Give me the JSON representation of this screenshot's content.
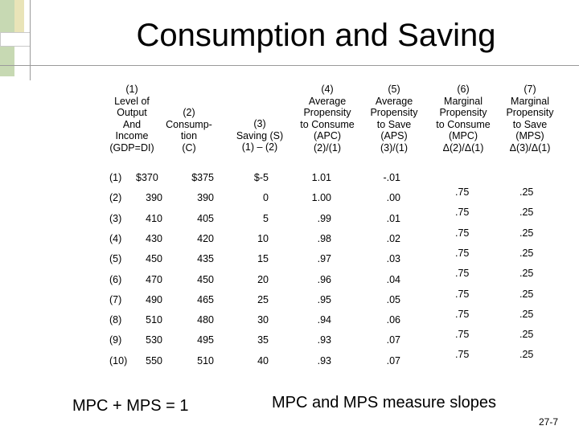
{
  "title": "Consumption and Saving",
  "headers": [
    {
      "lines": [
        "(1)",
        "Level of",
        "Output",
        "And",
        "Income",
        "(GDP=DI)"
      ]
    },
    {
      "lines": [
        "(2)",
        "Consump-",
        "tion",
        "(C)"
      ]
    },
    {
      "lines": [
        "(3)",
        "Saving (S)",
        "(1) – (2)"
      ]
    },
    {
      "lines": [
        "(4)",
        "Average",
        "Propensity",
        "to Consume",
        "(APC)",
        "(2)/(1)"
      ]
    },
    {
      "lines": [
        "(5)",
        "Average",
        "Propensity",
        "to Save",
        "(APS)",
        "(3)/(1)"
      ]
    },
    {
      "lines": [
        "(6)",
        "Marginal",
        "Propensity",
        "to Consume",
        "(MPC)",
        "Δ(2)/Δ(1)"
      ]
    },
    {
      "lines": [
        "(7)",
        "Marginal",
        "Propensity",
        "to Save",
        "(MPS)",
        "Δ(3)/Δ(1)"
      ]
    }
  ],
  "rows": [
    {
      "idx": "(1)",
      "gdp": "$370",
      "c": "$375",
      "s": "$-5",
      "apc": "1.01",
      "aps": "-.01"
    },
    {
      "idx": "(2)",
      "gdp": "390",
      "c": "390",
      "s": "0",
      "apc": "1.00",
      "aps": ".00"
    },
    {
      "idx": "(3)",
      "gdp": "410",
      "c": "405",
      "s": "5",
      "apc": ".99",
      "aps": ".01"
    },
    {
      "idx": "(4)",
      "gdp": "430",
      "c": "420",
      "s": "10",
      "apc": ".98",
      "aps": ".02"
    },
    {
      "idx": "(5)",
      "gdp": "450",
      "c": "435",
      "s": "15",
      "apc": ".97",
      "aps": ".03"
    },
    {
      "idx": "(6)",
      "gdp": "470",
      "c": "450",
      "s": "20",
      "apc": ".96",
      "aps": ".04"
    },
    {
      "idx": "(7)",
      "gdp": "490",
      "c": "465",
      "s": "25",
      "apc": ".95",
      "aps": ".05"
    },
    {
      "idx": "(8)",
      "gdp": "510",
      "c": "480",
      "s": "30",
      "apc": ".94",
      "aps": ".06"
    },
    {
      "idx": "(9)",
      "gdp": "530",
      "c": "495",
      "s": "35",
      "apc": ".93",
      "aps": ".07"
    },
    {
      "idx": "(10)",
      "gdp": "550",
      "c": "510",
      "s": "40",
      "apc": ".93",
      "aps": ".07"
    }
  ],
  "marginals": [
    {
      "mpc": ".75",
      "mps": ".25"
    },
    {
      "mpc": ".75",
      "mps": ".25"
    },
    {
      "mpc": ".75",
      "mps": ".25"
    },
    {
      "mpc": ".75",
      "mps": ".25"
    },
    {
      "mpc": ".75",
      "mps": ".25"
    },
    {
      "mpc": ".75",
      "mps": ".25"
    },
    {
      "mpc": ".75",
      "mps": ".25"
    },
    {
      "mpc": ".75",
      "mps": ".25"
    },
    {
      "mpc": ".75",
      "mps": ".25"
    }
  ],
  "formula": "MPC + MPS = 1",
  "note": "MPC and MPS measure slopes",
  "page_number": "27-7"
}
